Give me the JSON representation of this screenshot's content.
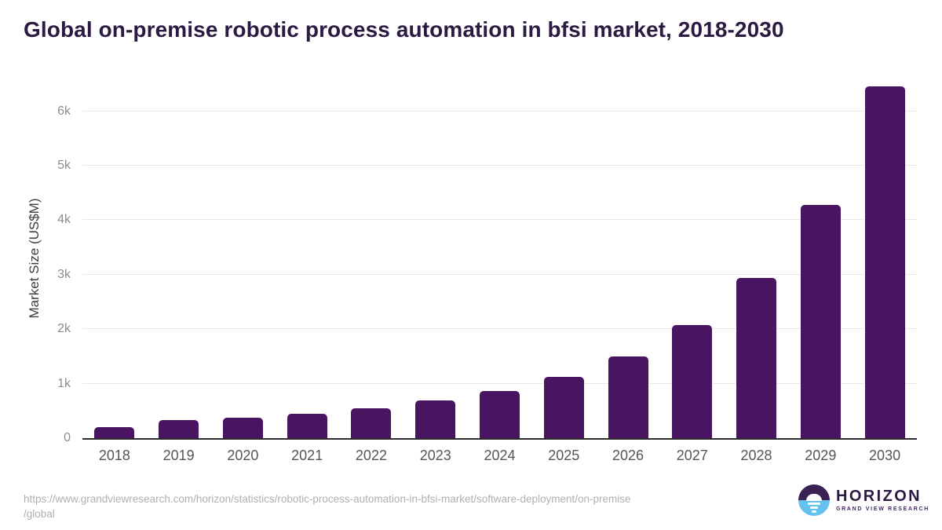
{
  "chart_data": {
    "type": "bar",
    "title": "Global on-premise robotic process automation in bfsi market, 2018-2030",
    "xlabel": "",
    "ylabel": "Market Size (US$M)",
    "categories": [
      "2018",
      "2019",
      "2020",
      "2021",
      "2022",
      "2023",
      "2024",
      "2025",
      "2026",
      "2027",
      "2028",
      "2029",
      "2030"
    ],
    "values": [
      200,
      325,
      375,
      450,
      550,
      690,
      860,
      1120,
      1505,
      2080,
      2940,
      4285,
      6450
    ],
    "ylim": [
      0,
      6600
    ],
    "yticks": [
      "0",
      "1k",
      "2k",
      "3k",
      "4k",
      "5k",
      "6k"
    ],
    "ytick_values": [
      0,
      1000,
      2000,
      3000,
      4000,
      5000,
      6000
    ],
    "grid": "horizontal",
    "legend": "none",
    "bar_color": "#4a1560"
  },
  "colors": {
    "title_text": "#2b1b42",
    "bar_purple": "#4a1560",
    "gridline": "#e8e8e8",
    "axis_line": "#2b2b2b",
    "ytick_text": "#8c8c8c",
    "xtick_text": "#565656",
    "url_text": "#b0b0b0",
    "logo_dark": "#3a2153",
    "logo_blue": "#63c3ee"
  },
  "footer": {
    "source_url_line1": "https://www.grandviewresearch.com/horizon/statistics/robotic-process-automation-in-bfsi-market/software-deployment/on-premise",
    "source_url_line2": "/global",
    "logo_title": "HORIZON",
    "logo_subtitle": "GRAND VIEW RESEARCH"
  }
}
